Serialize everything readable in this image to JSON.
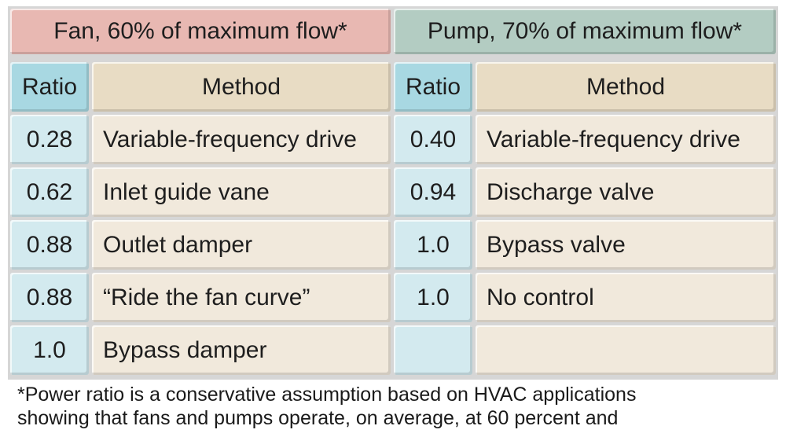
{
  "fan": {
    "title": "Fan, 60% of maximum flow*",
    "ratio_header": "Ratio",
    "method_header": "Method",
    "rows": [
      {
        "ratio": "0.28",
        "method": "Variable-frequency drive"
      },
      {
        "ratio": "0.62",
        "method": "Inlet guide vane"
      },
      {
        "ratio": "0.88",
        "method": "Outlet damper"
      },
      {
        "ratio": "0.88",
        "method": "“Ride the fan curve”"
      },
      {
        "ratio": "1.0",
        "method": "Bypass damper"
      }
    ]
  },
  "pump": {
    "title": "Pump, 70% of maximum flow*",
    "ratio_header": "Ratio",
    "method_header": "Method",
    "rows": [
      {
        "ratio": "0.40",
        "method": "Variable-frequency drive"
      },
      {
        "ratio": "0.94",
        "method": "Discharge valve"
      },
      {
        "ratio": "1.0",
        "method": "Bypass valve"
      },
      {
        "ratio": "1.0",
        "method": "No control"
      }
    ]
  },
  "footnote": {
    "line1": "*Power ratio is a conservative assumption based on HVAC applications",
    "line2": "showing that fans and pumps operate, on average, at 60 percent and"
  }
}
